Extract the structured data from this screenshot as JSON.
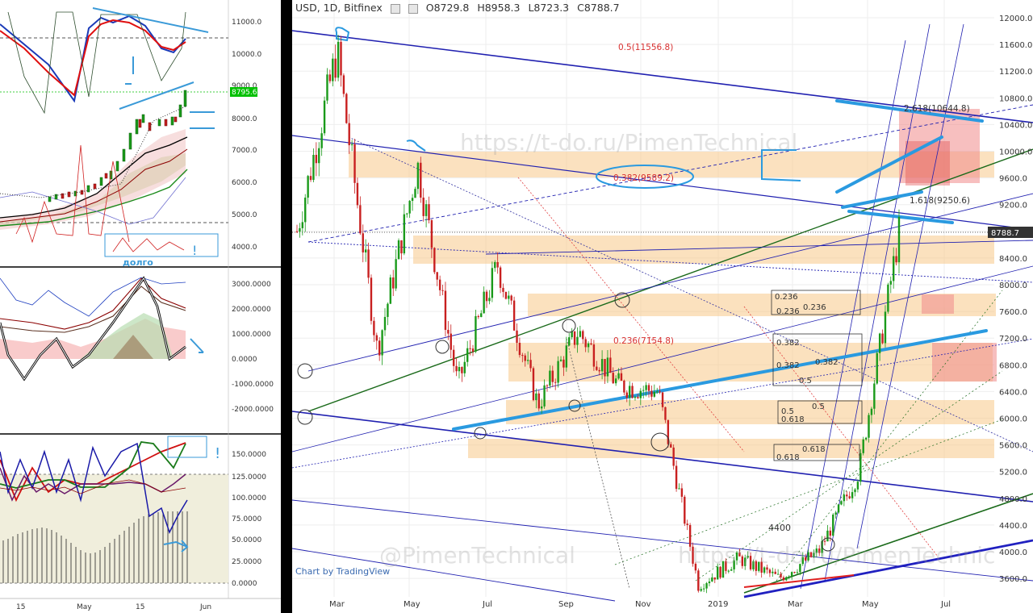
{
  "main": {
    "header": {
      "symbol": "USD, 1D, Bitfinex",
      "open": "O8729.8",
      "high": "H8958.3",
      "low": "L8723.3",
      "close": "C8788.7"
    },
    "credit": "Chart by TradingView",
    "watermark1": "https://t-do.ru/PimenTechnical",
    "watermark2": "@PimenTechnical",
    "watermark3": "https://t-do.ru/PimenTechnic",
    "last_price": "8788.7",
    "y_ticks": [
      "12000.0",
      "11600.0",
      "11200.0",
      "10800.0",
      "10400.0",
      "10000.0",
      "9600.0",
      "9200.0",
      "8800.0",
      "8400.0",
      "8000.0",
      "7600.0",
      "7200.0",
      "6800.0",
      "6400.0",
      "6000.0",
      "5600.0",
      "5200.0",
      "4800.0",
      "4400.0",
      "4000.0",
      "3600.0"
    ],
    "x_ticks": [
      "Mar",
      "May",
      "Jul",
      "Sep",
      "Nov",
      "2019",
      "Mar",
      "May",
      "Jul"
    ],
    "annotations": {
      "fib_top": "0.5(11556.8)",
      "fib_382": "0.382(9589.2)",
      "fib_2618": "2.618(10644.8)",
      "fib_1618": "1.618(9250.6)",
      "fib_0236": "0.236(7154.8)",
      "label_4400": "4400",
      "box1_a": "0.236",
      "box1_b": "0.236",
      "box1_c": "0.236",
      "box2_a": "0.382",
      "box2_b": "0.382",
      "box2_c": "0.382",
      "box2_d": "0.5",
      "box3_a": "0.5",
      "box3_b": "0.5",
      "box3_c": "0.618",
      "box4_a": "0.618",
      "box4_b": "0.618"
    }
  },
  "left_top": {
    "y_ticks": [
      "11000.0",
      "10000.0",
      "9000.0",
      "8000.0",
      "7000.0",
      "6000.0",
      "5000.0",
      "4000.0"
    ],
    "last_price": "8795.6",
    "note": "долго",
    "exclaim": "!"
  },
  "left_mid": {
    "y_ticks": [
      "3000.0000",
      "2000.0000",
      "1000.0000",
      "0.0000",
      "-1000.0000",
      "-2000.0000"
    ]
  },
  "left_bot": {
    "y_ticks": [
      "150.0000",
      "125.0000",
      "100.0000",
      "75.0000",
      "50.0000",
      "25.0000",
      "0.0000"
    ],
    "exclaim": "!"
  },
  "left_x_ticks": [
    "15",
    "May",
    "15",
    "Jun"
  ],
  "chart_data": {
    "type": "candlestick",
    "title": "USD, 1D, Bitfinex",
    "ohlc": {
      "open": 8729.8,
      "high": 8958.3,
      "low": 8723.3,
      "close": 8788.7
    },
    "ylim": [
      3400,
      12200
    ],
    "x_labels": [
      "Mar",
      "May",
      "Jul",
      "Sep",
      "Nov",
      "2019",
      "Mar",
      "May",
      "Jul"
    ],
    "fib_levels": [
      {
        "label": "0.5",
        "value": 11556.8
      },
      {
        "label": "0.382",
        "value": 9589.2
      },
      {
        "label": "2.618",
        "value": 10644.8
      },
      {
        "label": "1.618",
        "value": 9250.6
      },
      {
        "label": "0.236",
        "value": 7154.8
      }
    ],
    "price_series_approx": [
      {
        "x": "Feb",
        "close": 8800
      },
      {
        "x": "Mar",
        "close": 11500
      },
      {
        "x": "Apr",
        "close": 7000
      },
      {
        "x": "May",
        "close": 9800
      },
      {
        "x": "Jun",
        "close": 6500
      },
      {
        "x": "Jul",
        "close": 8300
      },
      {
        "x": "Aug",
        "close": 6200
      },
      {
        "x": "Sep",
        "close": 7300
      },
      {
        "x": "Oct",
        "close": 6500
      },
      {
        "x": "Nov",
        "close": 6400
      },
      {
        "x": "Dec",
        "close": 3500
      },
      {
        "x": "Jan",
        "close": 3900
      },
      {
        "x": "Feb",
        "close": 3600
      },
      {
        "x": "Mar",
        "close": 4000
      },
      {
        "x": "Apr",
        "close": 5200
      },
      {
        "x": "May",
        "close": 8788.7
      }
    ]
  }
}
